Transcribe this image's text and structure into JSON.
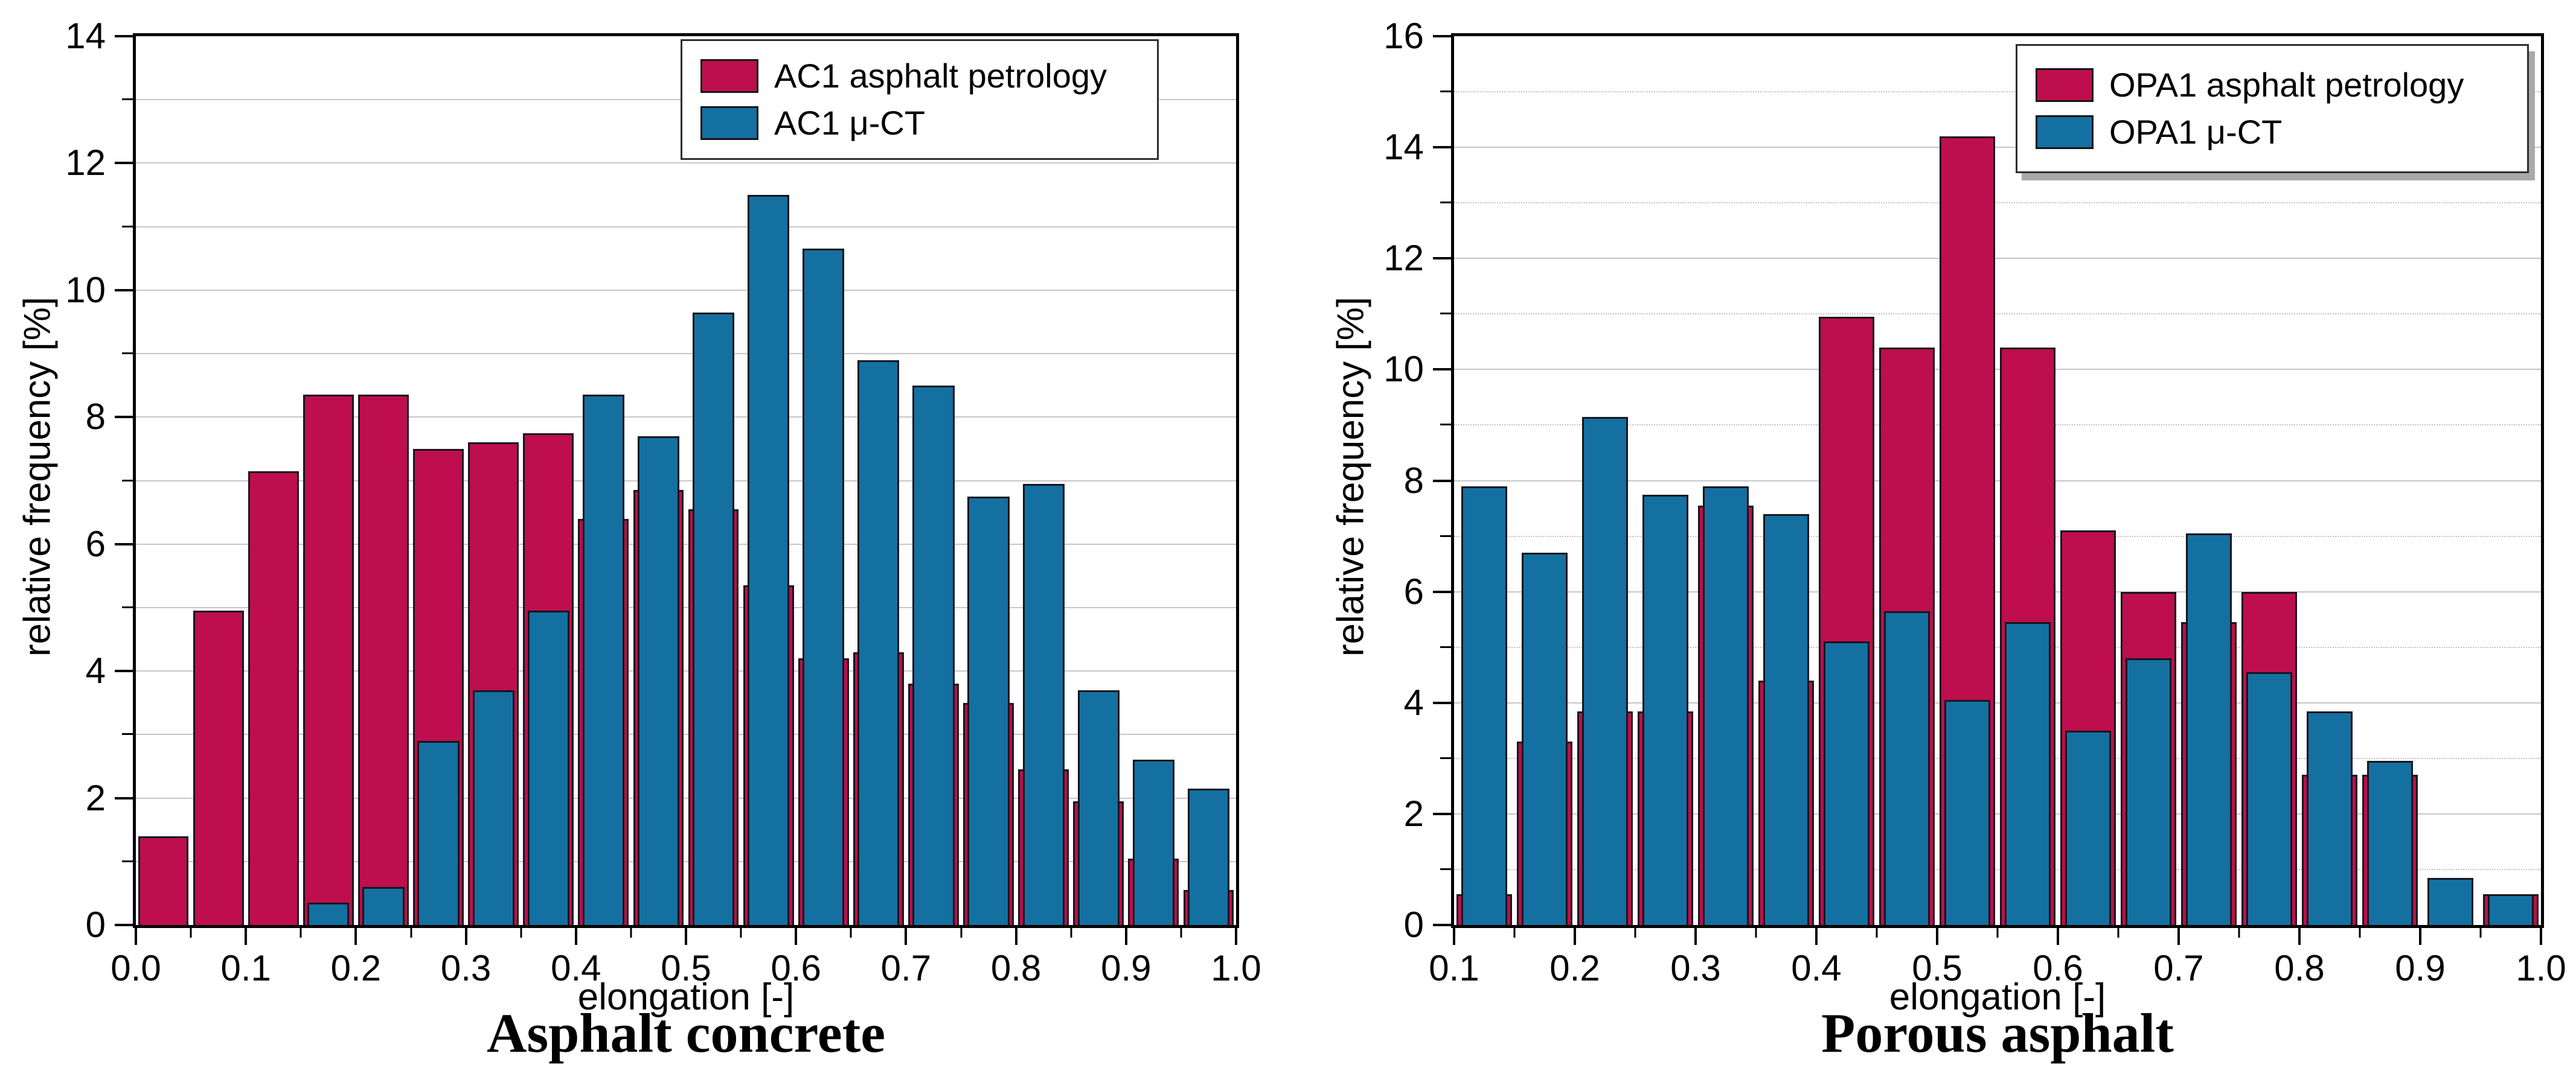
{
  "figure": {
    "background": "#ffffff",
    "axis_color": "#000000",
    "grid_major_color": "#c6c6c6",
    "grid_minor_color": "#c2c2c2",
    "bar_outline_color": "#16161d",
    "legend_shadow_color": "#a9a9a9"
  },
  "chart_data": [
    {
      "type": "bar",
      "title": "Asphalt concrete",
      "xlabel": "elongation [-]",
      "ylabel": "relative frequency [%]",
      "xlim": [
        0.0,
        1.0
      ],
      "ylim": [
        0,
        14
      ],
      "bin_start": 0.0,
      "bin_width": 0.05,
      "x_minor_step": 0.05,
      "y_major_step": 2,
      "y_minor_step": 1,
      "grid_minor_style": "solid",
      "legend_position": "top-right",
      "x_tick_labels": [
        "0.0",
        "0.1",
        "0.2",
        "0.3",
        "0.4",
        "0.5",
        "0.6",
        "0.7",
        "0.8",
        "0.9",
        "1.0"
      ],
      "y_tick_labels": [
        "0",
        "2",
        "4",
        "6",
        "8",
        "10",
        "12",
        "14"
      ],
      "series": [
        {
          "name": "AC1 asphalt petrology",
          "color": "#be0e4d",
          "layer": "back",
          "values": [
            1.4,
            4.95,
            7.15,
            8.35,
            8.35,
            7.5,
            7.6,
            7.75,
            6.4,
            6.85,
            6.55,
            5.35,
            4.2,
            4.3,
            3.8,
            3.5,
            2.45,
            1.95,
            1.05,
            0.55
          ]
        },
        {
          "name": "AC1 μ-CT",
          "color": "#1470a1",
          "layer": "front",
          "values": [
            0,
            0,
            0,
            0.35,
            0.6,
            2.9,
            3.7,
            4.95,
            8.35,
            7.7,
            9.65,
            11.5,
            10.65,
            8.9,
            8.5,
            6.75,
            6.95,
            3.7,
            2.6,
            2.15
          ]
        }
      ]
    },
    {
      "type": "bar",
      "title": "Porous asphalt",
      "xlabel": "elongation [-]",
      "ylabel": "relative frequency [%]",
      "xlim": [
        0.1,
        1.0
      ],
      "ylim": [
        0,
        16
      ],
      "bin_start": 0.1,
      "bin_width": 0.05,
      "x_minor_step": 0.05,
      "y_major_step": 2,
      "y_minor_step": 1,
      "grid_minor_style": "dotted",
      "legend_position": "top-right",
      "x_tick_labels": [
        "0.1",
        "0.2",
        "0.3",
        "0.4",
        "0.5",
        "0.6",
        "0.7",
        "0.8",
        "0.9",
        "1.0"
      ],
      "y_tick_labels": [
        "0",
        "2",
        "4",
        "6",
        "8",
        "10",
        "12",
        "14",
        "16"
      ],
      "series": [
        {
          "name": "OPA1 asphalt petrology",
          "color": "#be0e4d",
          "layer": "back",
          "values": [
            0.55,
            3.3,
            3.85,
            3.85,
            7.55,
            4.4,
            10.95,
            10.4,
            14.2,
            10.4,
            7.1,
            6.0,
            5.45,
            6.0,
            2.7,
            2.7,
            0,
            0.55
          ]
        },
        {
          "name": "OPA1 μ-CT",
          "color": "#1470a1",
          "layer": "front",
          "values": [
            7.9,
            6.7,
            9.15,
            7.75,
            7.9,
            7.4,
            5.1,
            5.65,
            4.05,
            5.45,
            3.5,
            4.8,
            7.05,
            4.55,
            3.85,
            2.95,
            0.85,
            0.55
          ]
        }
      ]
    }
  ]
}
